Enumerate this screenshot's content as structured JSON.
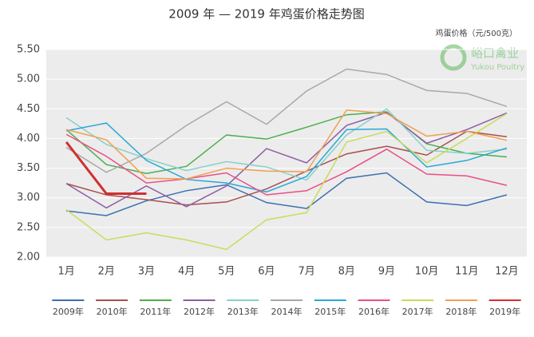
{
  "chart_data": {
    "type": "line",
    "title": "2009 年 — 2019 年鸡蛋价格走势图",
    "y_axis_label": "鸡蛋价格（元/500克）",
    "watermark": [
      "峪口禽业",
      "Yukou Poultry"
    ],
    "categories": [
      "1月",
      "2月",
      "3月",
      "4月",
      "5月",
      "6月",
      "7月",
      "8月",
      "9月",
      "10月",
      "11月",
      "12月"
    ],
    "ylim": [
      2.0,
      5.5
    ],
    "yticks": [
      {
        "value": 2.0,
        "label": "2.00"
      },
      {
        "value": 2.5,
        "label": "2.50"
      },
      {
        "value": 3.0,
        "label": "3.00"
      },
      {
        "value": 3.5,
        "label": "3.50"
      },
      {
        "value": 4.0,
        "label": "4.00"
      },
      {
        "value": 4.5,
        "label": "4.50"
      },
      {
        "value": 5.0,
        "label": "5.00"
      },
      {
        "value": 5.5,
        "label": "5.50"
      }
    ],
    "grid": true,
    "legend": "bottom",
    "series": [
      {
        "name": "2009年",
        "color": "#3d6fb0",
        "values": [
          2.78,
          2.7,
          2.95,
          3.12,
          3.22,
          2.92,
          2.82,
          3.33,
          3.42,
          2.93,
          2.87,
          3.05
        ]
      },
      {
        "name": "2010年",
        "color": "#a8504a",
        "values": [
          3.24,
          3.05,
          2.97,
          2.88,
          2.93,
          3.15,
          3.45,
          3.74,
          3.87,
          3.72,
          4.12,
          4.03
        ]
      },
      {
        "name": "2011年",
        "color": "#4cae4c",
        "values": [
          4.15,
          3.56,
          3.41,
          3.53,
          4.06,
          3.99,
          4.19,
          4.4,
          4.45,
          3.91,
          3.75,
          3.69
        ]
      },
      {
        "name": "2012年",
        "color": "#8e5ea2",
        "values": [
          3.24,
          2.83,
          3.2,
          2.85,
          3.2,
          3.83,
          3.59,
          4.22,
          4.44,
          3.92,
          4.15,
          4.43
        ]
      },
      {
        "name": "2013年",
        "color": "#88d0c8",
        "values": [
          4.35,
          3.9,
          3.66,
          3.46,
          3.61,
          3.52,
          3.3,
          4.06,
          4.5,
          3.8,
          3.75,
          3.82
        ]
      },
      {
        "name": "2014年",
        "color": "#a8a8a8",
        "values": [
          3.85,
          3.43,
          3.75,
          4.22,
          4.62,
          4.24,
          4.8,
          5.17,
          5.08,
          4.81,
          4.76,
          4.54
        ]
      },
      {
        "name": "2015年",
        "color": "#2aa7d8",
        "values": [
          4.13,
          4.26,
          3.63,
          3.31,
          3.25,
          3.1,
          3.36,
          4.15,
          4.16,
          3.52,
          3.63,
          3.84
        ]
      },
      {
        "name": "2016年",
        "color": "#e94f86",
        "values": [
          4.07,
          3.7,
          3.25,
          3.32,
          3.42,
          3.05,
          3.12,
          3.44,
          3.82,
          3.4,
          3.37,
          3.21
        ]
      },
      {
        "name": "2017年",
        "color": "#c8dc5a",
        "values": [
          2.8,
          2.29,
          2.41,
          2.29,
          2.13,
          2.63,
          2.75,
          3.94,
          4.12,
          3.59,
          4.0,
          4.42
        ]
      },
      {
        "name": "2018年",
        "color": "#f0a050",
        "values": [
          4.15,
          3.98,
          3.33,
          3.32,
          3.5,
          3.45,
          3.44,
          4.48,
          4.42,
          4.04,
          4.12,
          3.97
        ]
      },
      {
        "name": "2019年",
        "color": "#d03030",
        "values": [
          3.94,
          3.07,
          3.07,
          null,
          null,
          null,
          null,
          null,
          null,
          null,
          null,
          null
        ]
      }
    ]
  }
}
